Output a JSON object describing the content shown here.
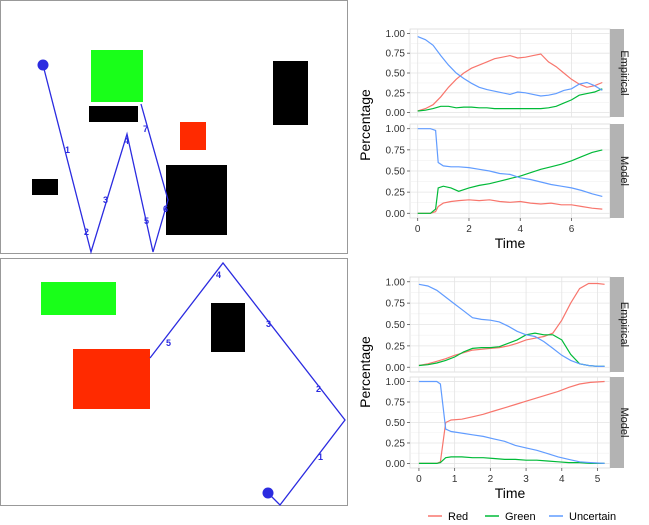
{
  "colors": {
    "red": "#F8766D",
    "green": "#00BA38",
    "blue": "#619CFF",
    "path": "#2b2be0",
    "obs_red": "#ff2a00",
    "obs_green": "#19ff19",
    "obs_black": "#000000"
  },
  "legend": {
    "items": [
      {
        "label": "Red",
        "color": "#F8766D"
      },
      {
        "label": "Green",
        "color": "#00BA38"
      },
      {
        "label": "Uncertain",
        "color": "#619CFF"
      }
    ]
  },
  "maps": [
    {
      "obstacles": [
        {
          "color": "green"
        },
        {
          "color": "black"
        },
        {
          "color": "red"
        },
        {
          "color": "black"
        },
        {
          "color": "black"
        },
        {
          "color": "black"
        }
      ],
      "path_labels": [
        "1",
        "2",
        "3",
        "4",
        "5",
        "6",
        "7"
      ]
    },
    {
      "obstacles": [
        {
          "color": "green"
        },
        {
          "color": "red"
        },
        {
          "color": "black"
        }
      ],
      "path_labels": [
        "1",
        "2",
        "3",
        "4",
        "5"
      ]
    }
  ],
  "chart_data": [
    {
      "type": "line",
      "ylabel": "Percentage",
      "xlabel": "Time",
      "xlim": [
        -0.3,
        7.5
      ],
      "ylim": [
        0,
        1
      ],
      "xticks": [
        0,
        2,
        4,
        6
      ],
      "yticks": [
        "0.00",
        "0.25",
        "0.50",
        "0.75",
        "1.00"
      ],
      "panels": [
        {
          "strip": "Empirical",
          "series": [
            {
              "name": "Red",
              "x": [
                0,
                0.3,
                0.6,
                0.9,
                1.2,
                1.5,
                1.8,
                2.1,
                2.4,
                2.7,
                3.0,
                3.3,
                3.6,
                3.9,
                4.2,
                4.5,
                4.8,
                5.1,
                5.4,
                5.7,
                6.0,
                6.3,
                6.6,
                6.9,
                7.2
              ],
              "y": [
                0.02,
                0.05,
                0.1,
                0.2,
                0.32,
                0.42,
                0.5,
                0.56,
                0.6,
                0.64,
                0.68,
                0.7,
                0.72,
                0.69,
                0.7,
                0.72,
                0.74,
                0.64,
                0.58,
                0.5,
                0.42,
                0.36,
                0.32,
                0.34,
                0.38
              ]
            },
            {
              "name": "Green",
              "x": [
                0,
                0.3,
                0.6,
                0.9,
                1.2,
                1.5,
                1.8,
                2.1,
                2.4,
                2.7,
                3.0,
                3.3,
                3.6,
                3.9,
                4.2,
                4.5,
                4.8,
                5.1,
                5.4,
                5.7,
                6.0,
                6.3,
                6.6,
                6.9,
                7.2
              ],
              "y": [
                0.02,
                0.03,
                0.05,
                0.08,
                0.08,
                0.06,
                0.07,
                0.07,
                0.06,
                0.06,
                0.05,
                0.05,
                0.05,
                0.05,
                0.05,
                0.05,
                0.05,
                0.06,
                0.08,
                0.12,
                0.16,
                0.22,
                0.24,
                0.26,
                0.3
              ]
            },
            {
              "name": "Uncertain",
              "x": [
                0,
                0.3,
                0.6,
                0.9,
                1.2,
                1.5,
                1.8,
                2.1,
                2.4,
                2.7,
                3.0,
                3.3,
                3.6,
                3.9,
                4.2,
                4.5,
                4.8,
                5.1,
                5.4,
                5.7,
                6.0,
                6.3,
                6.6,
                6.9,
                7.2
              ],
              "y": [
                0.96,
                0.92,
                0.85,
                0.72,
                0.6,
                0.5,
                0.43,
                0.37,
                0.32,
                0.29,
                0.27,
                0.25,
                0.23,
                0.26,
                0.25,
                0.23,
                0.21,
                0.22,
                0.24,
                0.28,
                0.3,
                0.36,
                0.38,
                0.34,
                0.28
              ]
            }
          ]
        },
        {
          "strip": "Model",
          "series": [
            {
              "name": "Red",
              "x": [
                0,
                0.5,
                0.7,
                0.8,
                1.0,
                1.3,
                1.6,
                2.0,
                2.4,
                2.8,
                3.2,
                3.6,
                4.0,
                4.4,
                4.8,
                5.2,
                5.6,
                6.0,
                6.4,
                6.8,
                7.2
              ],
              "y": [
                0,
                0,
                0.02,
                0.08,
                0.12,
                0.14,
                0.15,
                0.16,
                0.15,
                0.16,
                0.14,
                0.13,
                0.14,
                0.12,
                0.11,
                0.12,
                0.1,
                0.1,
                0.08,
                0.06,
                0.05
              ]
            },
            {
              "name": "Green",
              "x": [
                0,
                0.5,
                0.7,
                0.8,
                1.0,
                1.3,
                1.6,
                2.0,
                2.4,
                2.8,
                3.2,
                3.6,
                4.0,
                4.4,
                4.8,
                5.2,
                5.6,
                6.0,
                6.4,
                6.8,
                7.2
              ],
              "y": [
                0,
                0,
                0.05,
                0.3,
                0.32,
                0.3,
                0.26,
                0.3,
                0.33,
                0.35,
                0.38,
                0.41,
                0.44,
                0.48,
                0.52,
                0.55,
                0.58,
                0.62,
                0.67,
                0.72,
                0.75
              ]
            },
            {
              "name": "Uncertain",
              "x": [
                0,
                0.5,
                0.7,
                0.8,
                1.0,
                1.3,
                1.6,
                2.0,
                2.4,
                2.8,
                3.2,
                3.6,
                4.0,
                4.4,
                4.8,
                5.2,
                5.6,
                6.0,
                6.4,
                6.8,
                7.2
              ],
              "y": [
                1,
                1,
                0.98,
                0.6,
                0.56,
                0.55,
                0.55,
                0.54,
                0.52,
                0.5,
                0.47,
                0.46,
                0.42,
                0.4,
                0.37,
                0.34,
                0.32,
                0.3,
                0.27,
                0.23,
                0.2
              ]
            }
          ]
        }
      ]
    },
    {
      "type": "line",
      "ylabel": "Percentage",
      "xlabel": "Time",
      "xlim": [
        -0.25,
        5.35
      ],
      "ylim": [
        0,
        1
      ],
      "xticks": [
        0,
        1,
        2,
        3,
        4,
        5
      ],
      "yticks": [
        "0.00",
        "0.25",
        "0.50",
        "0.75",
        "1.00"
      ],
      "panels": [
        {
          "strip": "Empirical",
          "series": [
            {
              "name": "Red",
              "x": [
                0,
                0.25,
                0.5,
                0.75,
                1.0,
                1.25,
                1.5,
                1.75,
                2.0,
                2.25,
                2.5,
                2.75,
                3.0,
                3.25,
                3.5,
                3.75,
                4.0,
                4.25,
                4.5,
                4.75,
                5.0,
                5.2
              ],
              "y": [
                0.02,
                0.04,
                0.07,
                0.1,
                0.14,
                0.17,
                0.2,
                0.21,
                0.22,
                0.23,
                0.25,
                0.28,
                0.32,
                0.34,
                0.36,
                0.4,
                0.55,
                0.75,
                0.92,
                0.98,
                0.98,
                0.97
              ]
            },
            {
              "name": "Green",
              "x": [
                0,
                0.25,
                0.5,
                0.75,
                1.0,
                1.25,
                1.5,
                1.75,
                2.0,
                2.25,
                2.5,
                2.75,
                3.0,
                3.25,
                3.5,
                3.75,
                4.0,
                4.25,
                4.5,
                4.75,
                5.0,
                5.2
              ],
              "y": [
                0.02,
                0.03,
                0.05,
                0.08,
                0.12,
                0.18,
                0.22,
                0.23,
                0.23,
                0.24,
                0.28,
                0.32,
                0.38,
                0.4,
                0.38,
                0.38,
                0.32,
                0.15,
                0.04,
                0.02,
                0.01,
                0.01
              ]
            },
            {
              "name": "Uncertain",
              "x": [
                0,
                0.25,
                0.5,
                0.75,
                1.0,
                1.25,
                1.5,
                1.75,
                2.0,
                2.25,
                2.5,
                2.75,
                3.0,
                3.25,
                3.5,
                3.75,
                4.0,
                4.25,
                4.5,
                4.75,
                5.0,
                5.2
              ],
              "y": [
                0.97,
                0.95,
                0.9,
                0.82,
                0.74,
                0.66,
                0.58,
                0.56,
                0.55,
                0.53,
                0.48,
                0.42,
                0.38,
                0.36,
                0.3,
                0.22,
                0.14,
                0.08,
                0.04,
                0.02,
                0.01,
                0.01
              ]
            }
          ]
        },
        {
          "strip": "Model",
          "series": [
            {
              "name": "Red",
              "x": [
                0,
                0.5,
                0.6,
                0.75,
                0.9,
                1.2,
                1.5,
                1.8,
                2.1,
                2.4,
                2.7,
                3.0,
                3.3,
                3.6,
                3.9,
                4.2,
                4.5,
                4.8,
                5.2
              ],
              "y": [
                0,
                0,
                0.02,
                0.5,
                0.53,
                0.54,
                0.57,
                0.6,
                0.64,
                0.68,
                0.72,
                0.76,
                0.8,
                0.84,
                0.88,
                0.93,
                0.97,
                0.99,
                1.0
              ]
            },
            {
              "name": "Green",
              "x": [
                0,
                0.5,
                0.6,
                0.75,
                0.9,
                1.2,
                1.5,
                1.8,
                2.1,
                2.4,
                2.7,
                3.0,
                3.3,
                3.6,
                3.9,
                4.2,
                4.5,
                4.8,
                5.2
              ],
              "y": [
                0,
                0,
                0.01,
                0.07,
                0.08,
                0.08,
                0.07,
                0.07,
                0.06,
                0.05,
                0.05,
                0.04,
                0.04,
                0.03,
                0.02,
                0.01,
                0.01,
                0.0,
                0.0
              ]
            },
            {
              "name": "Uncertain",
              "x": [
                0,
                0.5,
                0.6,
                0.75,
                0.9,
                1.2,
                1.5,
                1.8,
                2.1,
                2.4,
                2.7,
                3.0,
                3.3,
                3.6,
                3.9,
                4.2,
                4.5,
                4.8,
                5.2
              ],
              "y": [
                1,
                1,
                0.97,
                0.42,
                0.39,
                0.37,
                0.35,
                0.33,
                0.3,
                0.27,
                0.22,
                0.19,
                0.16,
                0.12,
                0.08,
                0.05,
                0.02,
                0.01,
                0.0
              ]
            }
          ]
        }
      ]
    }
  ]
}
